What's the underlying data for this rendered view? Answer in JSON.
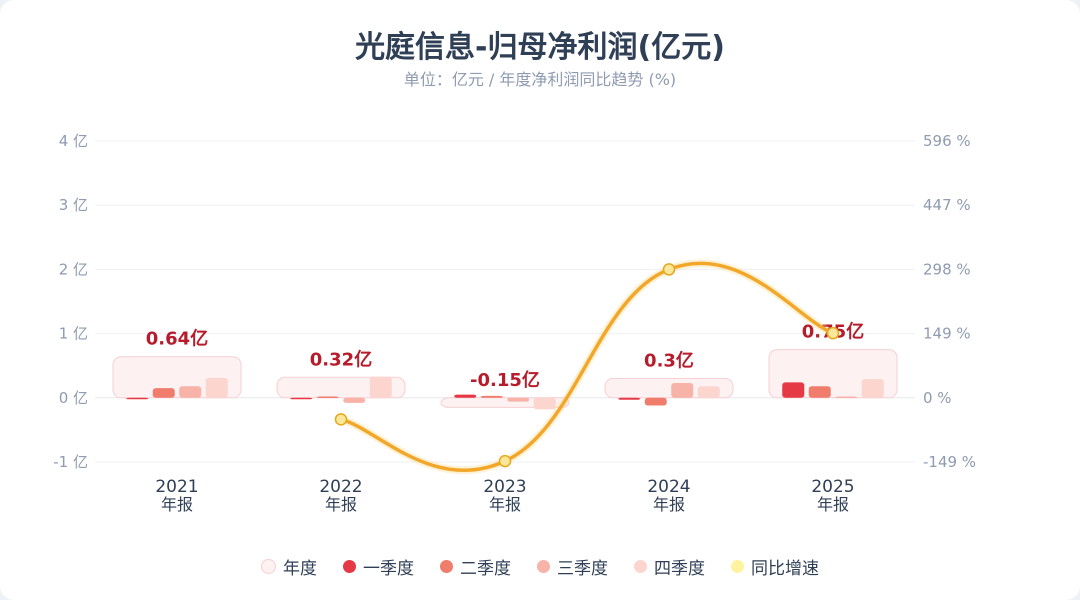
{
  "title": "光庭信息-归母净利润(亿元)",
  "subtitle": "单位：亿元 / 年度净利润同比趋势 (%)",
  "colors": {
    "annual_fill": "#fdf1f2",
    "annual_stroke": "#f6cfd3",
    "q1": "#e63946",
    "q2": "#f07c6c",
    "q3": "#f7b3a8",
    "q4": "#fcd5cf",
    "yoy_line": "#f2a72b",
    "yoy_marker": "#fbe79a",
    "label": "#b71c2c"
  },
  "legend": [
    {
      "label": "年度",
      "color": "#fdf1f2"
    },
    {
      "label": "一季度",
      "color": "#e63946"
    },
    {
      "label": "二季度",
      "color": "#f07c6c"
    },
    {
      "label": "三季度",
      "color": "#f7b3a8"
    },
    {
      "label": "四季度",
      "color": "#fcd5cf"
    },
    {
      "label": "同比增速",
      "color": "#fff3a0"
    }
  ],
  "chart_data": {
    "type": "bar",
    "categories": [
      {
        "year": "2021",
        "period": "年报"
      },
      {
        "year": "2022",
        "period": "年报"
      },
      {
        "year": "2023",
        "period": "年报"
      },
      {
        "year": "2024",
        "period": "年报"
      },
      {
        "year": "2025",
        "period": "年报"
      }
    ],
    "annual": [
      0.64,
      0.32,
      -0.15,
      0.3,
      0.75
    ],
    "annual_labels": [
      "0.64亿",
      "0.32亿",
      "-0.15亿",
      "0.3亿",
      "0.75亿"
    ],
    "quarters": {
      "q1": [
        0.0,
        -0.01,
        0.05,
        -0.03,
        0.24
      ],
      "q2": [
        0.15,
        0.02,
        0.03,
        -0.12,
        0.18
      ],
      "q3": [
        0.18,
        -0.08,
        -0.06,
        0.23,
        0.02
      ],
      "q4": [
        0.31,
        0.33,
        -0.18,
        0.18,
        0.29
      ]
    },
    "yoy_growth": [
      null,
      -50,
      -147,
      298,
      150
    ],
    "left_axis": {
      "min": -1,
      "max": 4,
      "ticks": [
        -1,
        0,
        1,
        2,
        3,
        4
      ],
      "tick_labels": [
        "-1 亿",
        "0 亿",
        "1 亿",
        "2 亿",
        "3 亿",
        "4 亿"
      ]
    },
    "right_axis": {
      "min": -149,
      "max": 596,
      "tick_labels": [
        "-149 %",
        "0 %",
        "149 %",
        "298 %",
        "447 %",
        "596 %"
      ]
    },
    "grid": true,
    "legend_position": "bottom"
  }
}
